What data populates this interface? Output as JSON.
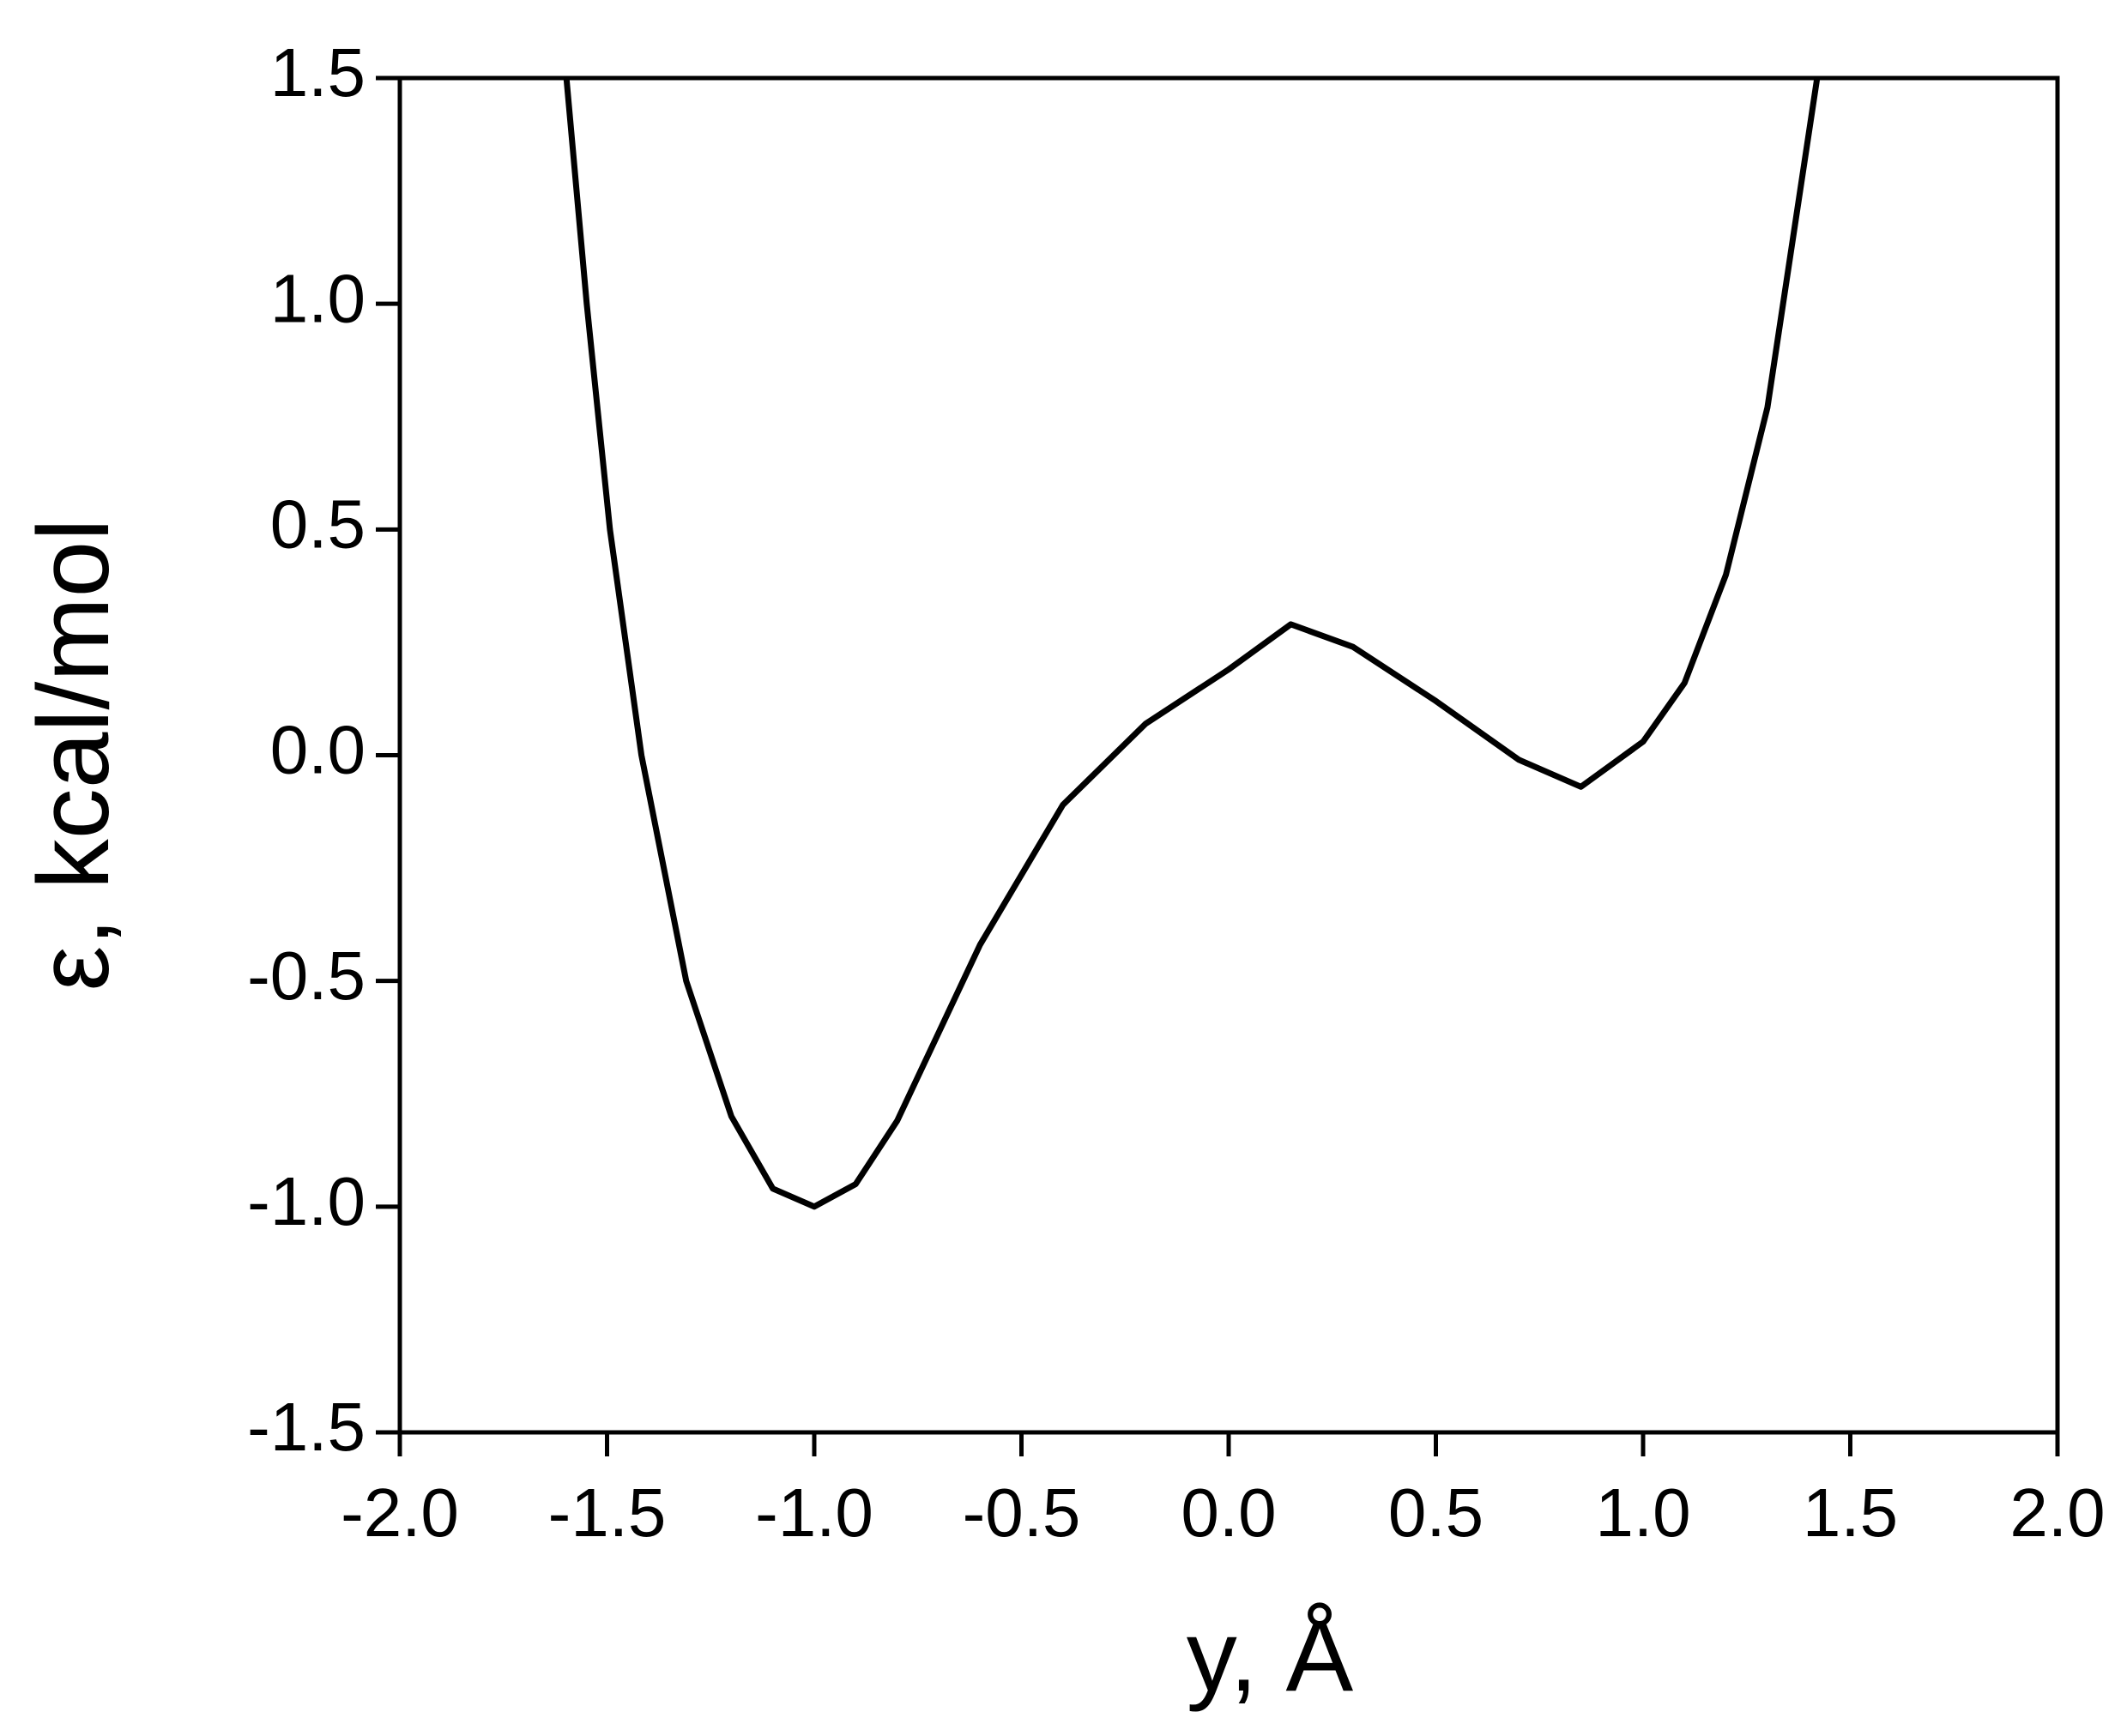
{
  "chart_data": {
    "type": "line",
    "x_label": "y, Å",
    "y_label": "ε, kcal/mol",
    "x": [
      -1.598,
      -1.549,
      -1.493,
      -1.417,
      -1.309,
      -1.2,
      -1.1,
      -1.0,
      -0.9,
      -0.8,
      -0.6,
      -0.4,
      -0.2,
      0,
      0.15,
      0.3,
      0.5,
      0.7,
      0.85,
      1.0,
      1.1,
      1.2,
      1.3,
      1.42
    ],
    "series": [
      {
        "color": "#000000",
        "values": [
          1.5,
          1.0,
          0.5,
          0.0,
          -0.5,
          -0.8,
          -0.96,
          -1.0,
          -0.95,
          -0.81,
          -0.42,
          -0.11,
          0.07,
          0.19,
          0.29,
          0.24,
          0.12,
          -0.01,
          -0.07,
          0.03,
          0.16,
          0.4,
          0.77,
          1.5
        ]
      }
    ],
    "xlim": [
      -2,
      2
    ],
    "xticks": [
      {
        "value": -2,
        "label": "-2.0"
      },
      -1.5,
      {
        "value": -1,
        "label": "-1.0"
      },
      -0.5,
      {
        "value": 0,
        "label": "0.0"
      },
      0.5,
      {
        "value": 1,
        "label": "1.0"
      },
      1.5,
      {
        "value": 2,
        "label": "2.0"
      }
    ],
    "ylim": [
      -1.5,
      1.5
    ],
    "yticks": [
      -1.5,
      {
        "value": -1,
        "label": "-1.0"
      },
      -0.5,
      {
        "value": 0,
        "label": "0.0"
      },
      0.5,
      {
        "value": 1,
        "label": "1.0"
      },
      1.5
    ],
    "grid": false
  }
}
